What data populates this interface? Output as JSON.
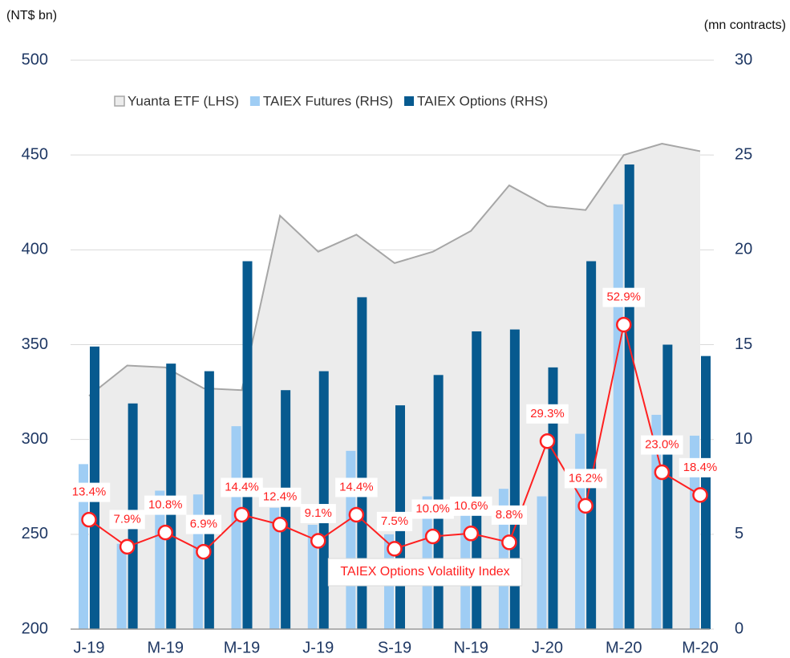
{
  "chart_data": {
    "type": "bar",
    "y_unit_label": "(NT$ bn)",
    "y2_unit_label": "(mn contracts)",
    "categories": [
      "J-19",
      null,
      "M-19",
      null,
      "M-19",
      null,
      "J-19",
      null,
      "S-19",
      null,
      "N-19",
      null,
      "J-20",
      null,
      "M-20",
      null,
      "M-20"
    ],
    "ylim": [
      200,
      500
    ],
    "yticks": [
      200,
      250,
      300,
      350,
      400,
      450,
      500
    ],
    "y2lim": [
      0,
      30
    ],
    "y2ticks": [
      0,
      5,
      10,
      15,
      20,
      25,
      30
    ],
    "grid": true,
    "legend": "top",
    "series": [
      {
        "name": "Yuanta ETF (LHS)",
        "type": "area",
        "color": "#ececec",
        "values": [
          323,
          339,
          338,
          327,
          326,
          418,
          399,
          408,
          393,
          399,
          410,
          434,
          423,
          421,
          450,
          456,
          452
        ]
      },
      {
        "name": "TAIEX Futures (RHS)",
        "type": "bar",
        "axis": "y2",
        "color": "#9fcdf4",
        "values": [
          8.7,
          4.5,
          7.3,
          7.1,
          10.7,
          6.4,
          5.5,
          9.4,
          5.0,
          7.0,
          6.4,
          7.4,
          7.0,
          10.3,
          22.4,
          11.3,
          10.2
        ]
      },
      {
        "name": "TAIEX Options (RHS)",
        "type": "bar",
        "axis": "y2",
        "color": "#075a8f",
        "values": [
          14.9,
          11.9,
          14.0,
          13.6,
          19.4,
          12.6,
          13.6,
          17.5,
          11.8,
          13.4,
          15.7,
          15.8,
          13.8,
          19.4,
          24.5,
          15.0,
          14.4
        ]
      },
      {
        "name": "TAIEX Options Volatility Index",
        "type": "line",
        "color": "#ff2020",
        "values": [
          13.4,
          7.9,
          10.8,
          6.9,
          14.4,
          12.4,
          9.1,
          14.4,
          7.5,
          10.0,
          10.6,
          8.8,
          29.3,
          16.2,
          52.9,
          23.0,
          18.4
        ],
        "value_labels": [
          "13.4%",
          "7.9%",
          "10.8%",
          "6.9%",
          "14.4%",
          "12.4%",
          "9.1%",
          "14.4%",
          "7.5%",
          "10.0%",
          "10.6%",
          "8.8%",
          "29.3%",
          "16.2%",
          "52.9%",
          "23.0%",
          "18.4%"
        ]
      }
    ]
  }
}
